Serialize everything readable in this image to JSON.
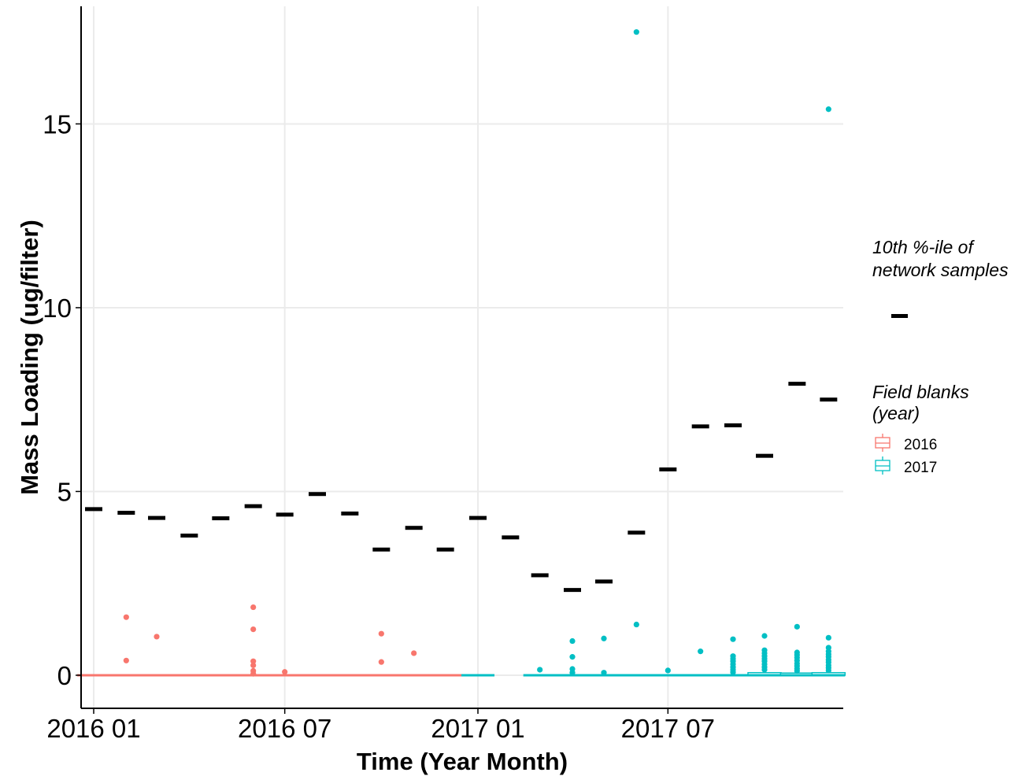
{
  "chart_data": {
    "type": "box",
    "xlabel": "Time (Year Month)",
    "ylabel": "Mass Loading (ug/filter)",
    "x_ticks": [
      "2016 01",
      "2016 07",
      "2017 01",
      "2017 07"
    ],
    "y_ticks": [
      "0",
      "5",
      "10",
      "15"
    ],
    "xlim": [
      "2015-12-20",
      "2017-12-15"
    ],
    "ylim": [
      -0.9,
      18.2
    ],
    "grid": true,
    "legend_position": "right",
    "legend_percentile_title": [
      "10th %-ile of",
      "network samples"
    ],
    "legend_blanks_title": [
      "Field blanks",
      "(year)"
    ],
    "colors": {
      "2016": "#F8766D",
      "2017": "#00BFC4",
      "percentile": "#000000"
    },
    "percentile_series": {
      "name": "10th %-ile of network samples",
      "x": [
        "2016-01",
        "2016-02",
        "2016-03",
        "2016-04",
        "2016-05",
        "2016-06",
        "2016-07",
        "2016-08",
        "2016-09",
        "2016-10",
        "2016-11",
        "2016-12",
        "2017-01",
        "2017-02",
        "2017-03",
        "2017-04",
        "2017-05",
        "2017-06",
        "2017-07",
        "2017-08",
        "2017-09",
        "2017-10",
        "2017-11",
        "2017-12"
      ],
      "values": [
        4.52,
        4.42,
        4.28,
        3.8,
        4.27,
        4.6,
        4.37,
        4.93,
        4.4,
        3.42,
        4.01,
        3.42,
        4.28,
        3.75,
        2.72,
        2.32,
        2.55,
        3.88,
        5.6,
        6.77,
        6.8,
        5.97,
        7.93,
        7.5
      ]
    },
    "field_blanks": [
      {
        "year": "2016",
        "month": "2016-01",
        "median": 0,
        "q1": 0,
        "q3": 0,
        "outliers": []
      },
      {
        "year": "2016",
        "month": "2016-02",
        "median": 0,
        "q1": 0,
        "q3": 0,
        "outliers": [
          1.58,
          0.4
        ]
      },
      {
        "year": "2016",
        "month": "2016-03",
        "median": 0,
        "q1": 0,
        "q3": 0,
        "outliers": [
          1.05
        ]
      },
      {
        "year": "2016",
        "month": "2016-04",
        "median": 0,
        "q1": 0,
        "q3": 0,
        "outliers": []
      },
      {
        "year": "2016",
        "month": "2016-05",
        "median": 0,
        "q1": 0,
        "q3": 0,
        "outliers": []
      },
      {
        "year": "2016",
        "month": "2016-06",
        "median": 0,
        "q1": 0,
        "q3": 0,
        "outliers": [
          1.85,
          1.25,
          0.38,
          0.27,
          0.12,
          0.04
        ]
      },
      {
        "year": "2016",
        "month": "2016-07",
        "median": 0,
        "q1": 0,
        "q3": 0,
        "outliers": [
          0.09
        ]
      },
      {
        "year": "2016",
        "month": "2016-08",
        "median": 0,
        "q1": 0,
        "q3": 0,
        "outliers": []
      },
      {
        "year": "2016",
        "month": "2016-09",
        "median": 0,
        "q1": 0,
        "q3": 0,
        "outliers": []
      },
      {
        "year": "2016",
        "month": "2016-10",
        "median": 0,
        "q1": 0,
        "q3": 0,
        "outliers": [
          1.13,
          0.36
        ]
      },
      {
        "year": "2016",
        "month": "2016-11",
        "median": 0,
        "q1": 0,
        "q3": 0,
        "outliers": [
          0.6
        ]
      },
      {
        "year": "2016",
        "month": "2016-12",
        "median": 0,
        "q1": 0,
        "q3": 0,
        "outliers": []
      },
      {
        "year": "2017",
        "month": "2017-01",
        "median": 0,
        "q1": 0,
        "q3": 0,
        "outliers": []
      },
      {
        "year": "2017",
        "month": "2017-03",
        "median": 0,
        "q1": 0,
        "q3": 0,
        "outliers": [
          0.15
        ]
      },
      {
        "year": "2017",
        "month": "2017-04",
        "median": 0,
        "q1": 0,
        "q3": 0,
        "outliers": [
          0.93,
          0.5,
          0.17,
          0.07
        ]
      },
      {
        "year": "2017",
        "month": "2017-05",
        "median": 0,
        "q1": 0,
        "q3": 0,
        "outliers": [
          1.0,
          0.07
        ]
      },
      {
        "year": "2017",
        "month": "2017-06",
        "median": 0,
        "q1": 0,
        "q3": 0,
        "outliers": [
          17.5,
          1.38
        ]
      },
      {
        "year": "2017",
        "month": "2017-07",
        "median": 0,
        "q1": 0,
        "q3": 0,
        "outliers": [
          0.13
        ]
      },
      {
        "year": "2017",
        "month": "2017-08",
        "median": 0,
        "q1": 0,
        "q3": 0,
        "outliers": [
          0.65
        ]
      },
      {
        "year": "2017",
        "month": "2017-09",
        "median": 0,
        "q1": 0,
        "q3": 0.02,
        "outliers": [
          0.98,
          0.52,
          0.45,
          0.38,
          0.3,
          0.22,
          0.15,
          0.08
        ]
      },
      {
        "year": "2017",
        "month": "2017-10",
        "median": 0,
        "q1": 0,
        "q3": 0.07,
        "outliers": [
          1.07,
          0.68,
          0.6,
          0.52,
          0.45,
          0.38,
          0.3,
          0.22,
          0.15
        ]
      },
      {
        "year": "2017",
        "month": "2017-11",
        "median": 0,
        "q1": 0,
        "q3": 0.06,
        "outliers": [
          1.32,
          0.62,
          0.55,
          0.48,
          0.4,
          0.32,
          0.25,
          0.18,
          0.12
        ]
      },
      {
        "year": "2017",
        "month": "2017-12",
        "median": 0,
        "q1": 0,
        "q3": 0.07,
        "outliers": [
          15.4,
          1.02,
          0.75,
          0.65,
          0.57,
          0.5,
          0.42,
          0.35,
          0.27,
          0.2,
          0.13
        ]
      }
    ],
    "legend_items": [
      {
        "label": "2016",
        "color": "#F8766D"
      },
      {
        "label": "2017",
        "color": "#00BFC4"
      }
    ]
  }
}
